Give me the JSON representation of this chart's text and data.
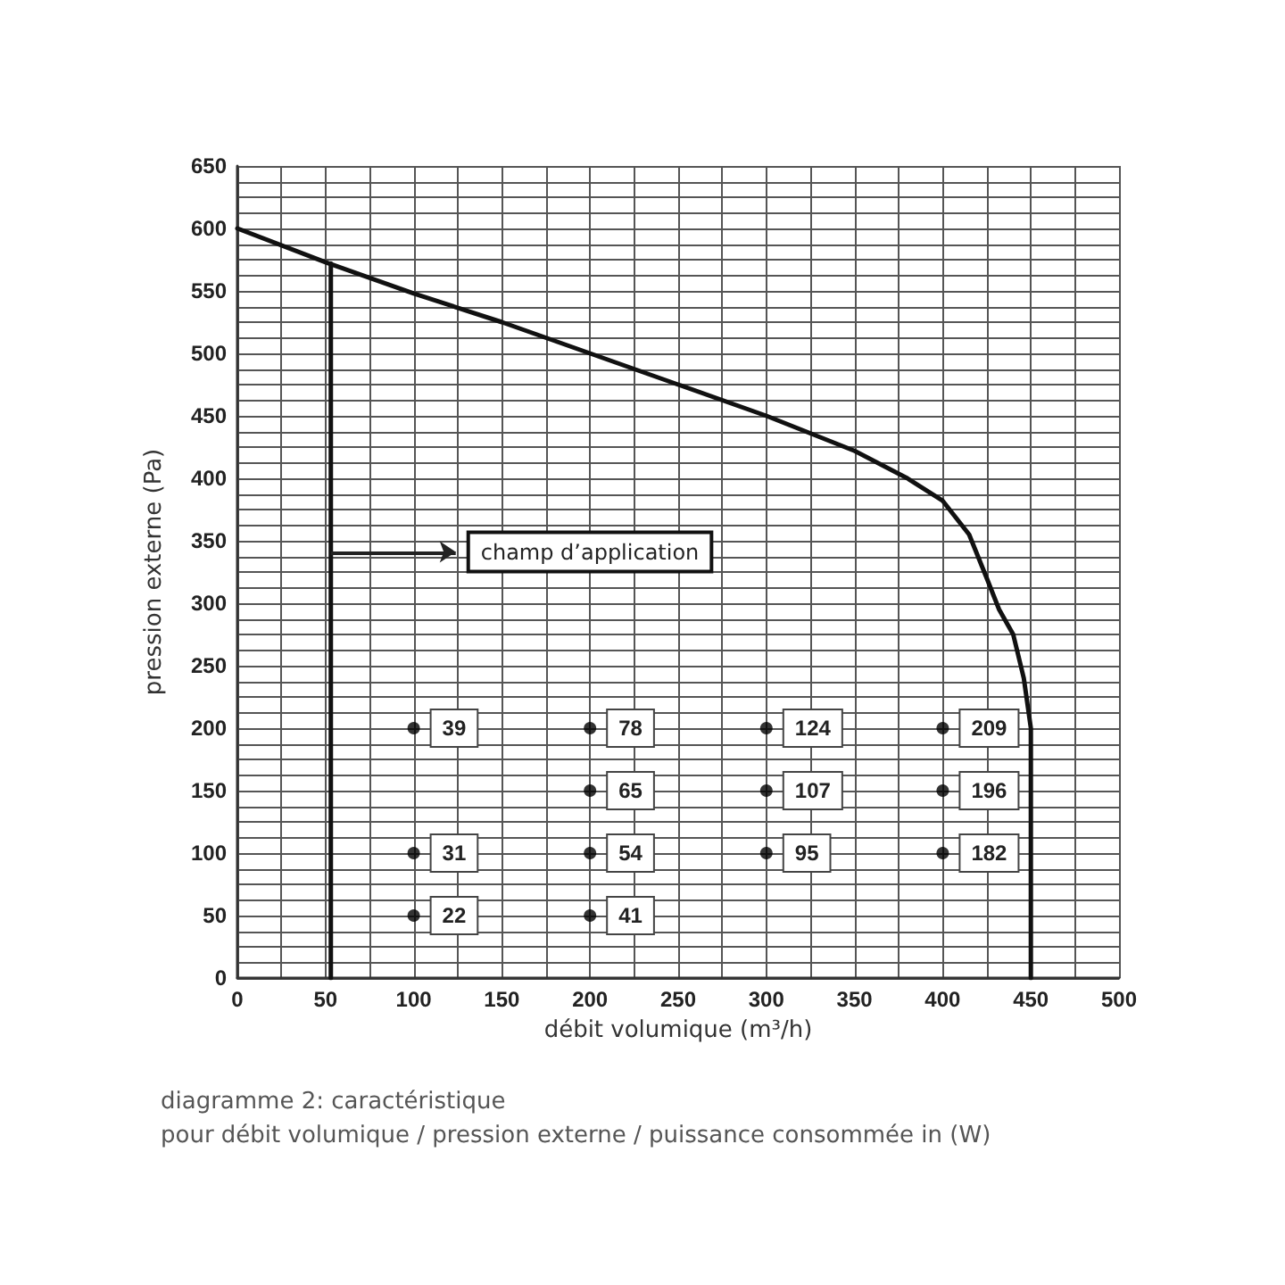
{
  "chart_data": {
    "type": "line",
    "xlabel": "débit volumique (m³/h)",
    "ylabel": "pression externe (Pa)",
    "annotations": [
      {
        "text": "champ d’application",
        "x": 53,
        "y": 341
      },
      {
        "text": "39",
        "x": 100,
        "y": 200
      },
      {
        "text": "31",
        "x": 100,
        "y": 100
      },
      {
        "text": "22",
        "x": 100,
        "y": 50
      },
      {
        "text": "78",
        "x": 200,
        "y": 200
      },
      {
        "text": "65",
        "x": 200,
        "y": 150
      },
      {
        "text": "54",
        "x": 200,
        "y": 100
      },
      {
        "text": "41",
        "x": 200,
        "y": 50
      },
      {
        "text": "124",
        "x": 300,
        "y": 200
      },
      {
        "text": "107",
        "x": 300,
        "y": 150
      },
      {
        "text": "95",
        "x": 300,
        "y": 100
      },
      {
        "text": "209",
        "x": 400,
        "y": 200
      },
      {
        "text": "196",
        "x": 400,
        "y": 150
      },
      {
        "text": "182",
        "x": 400,
        "y": 100
      },
      "diagramme 2: caractéristique",
      "pour débit volumique / pression externe / puissance consommée in (W)"
    ],
    "series": [
      {
        "color": "#111111",
        "x": [
          0,
          50,
          100,
          150,
          200,
          250,
          300,
          350,
          380,
          400,
          415,
          425,
          432,
          440,
          446,
          450,
          450,
          450
        ],
        "values": [
          600,
          573,
          548,
          525,
          500,
          475,
          450,
          422,
          400,
          382,
          355,
          320,
          295,
          275,
          240,
          200,
          100,
          0
        ]
      },
      {
        "color": "#111111",
        "x": [
          53,
          53
        ],
        "values": [
          0,
          572
        ]
      },
      {
        "type": "scatter",
        "marker": "circle",
        "color": "#000000",
        "x": [
          100,
          100,
          100,
          200,
          200,
          200,
          200,
          300,
          300,
          300,
          400,
          400,
          400
        ],
        "values": [
          200,
          100,
          50,
          200,
          150,
          100,
          50,
          200,
          150,
          100,
          200,
          150,
          100
        ]
      }
    ],
    "xlim": [
      0,
      500
    ],
    "xticks": [
      0,
      {
        "value": 25,
        "label": null
      },
      50,
      {
        "value": 75,
        "label": null
      },
      100,
      {
        "value": 125,
        "label": null
      },
      150,
      {
        "value": 175,
        "label": null
      },
      200,
      {
        "value": 225,
        "label": null
      },
      250,
      {
        "value": 275,
        "label": null
      },
      300,
      {
        "value": 325,
        "label": null
      },
      350,
      {
        "value": 375,
        "label": null
      },
      400,
      {
        "value": 425,
        "label": null
      },
      450,
      {
        "value": 475,
        "label": null
      },
      500
    ],
    "ylim": [
      0,
      650
    ],
    "yticks": [
      0,
      {
        "value": 12.5,
        "label": null
      },
      {
        "value": 25,
        "label": null
      },
      {
        "value": 37.5,
        "label": null
      },
      50,
      {
        "value": 62.5,
        "label": null
      },
      {
        "value": 75,
        "label": null
      },
      {
        "value": 87.5,
        "label": null
      },
      100,
      {
        "value": 112.5,
        "label": null
      },
      {
        "value": 125,
        "label": null
      },
      {
        "value": 137.5,
        "label": null
      },
      150,
      {
        "value": 162.5,
        "label": null
      },
      {
        "value": 175,
        "label": null
      },
      {
        "value": 187.5,
        "label": null
      },
      200,
      {
        "value": 212.5,
        "label": null
      },
      {
        "value": 225,
        "label": null
      },
      {
        "value": 237.5,
        "label": null
      },
      250,
      {
        "value": 262.5,
        "label": null
      },
      {
        "value": 275,
        "label": null
      },
      {
        "value": 287.5,
        "label": null
      },
      300,
      {
        "value": 312.5,
        "label": null
      },
      {
        "value": 325,
        "label": null
      },
      {
        "value": 337.5,
        "label": null
      },
      350,
      {
        "value": 362.5,
        "label": null
      },
      {
        "value": 375,
        "label": null
      },
      {
        "value": 387.5,
        "label": null
      },
      400,
      {
        "value": 412.5,
        "label": null
      },
      {
        "value": 425,
        "label": null
      },
      {
        "value": 437.5,
        "label": null
      },
      450,
      {
        "value": 462.5,
        "label": null
      },
      {
        "value": 475,
        "label": null
      },
      {
        "value": 487.5,
        "label": null
      },
      500,
      {
        "value": 512.5,
        "label": null
      },
      {
        "value": 525,
        "label": null
      },
      {
        "value": 537.5,
        "label": null
      },
      550,
      {
        "value": 562.5,
        "label": null
      },
      {
        "value": 575,
        "label": null
      },
      {
        "value": 587.5,
        "label": null
      },
      600,
      {
        "value": 612.5,
        "label": null
      },
      {
        "value": 625,
        "label": null
      },
      {
        "value": 637.5,
        "label": null
      },
      650
    ],
    "grid": true
  }
}
